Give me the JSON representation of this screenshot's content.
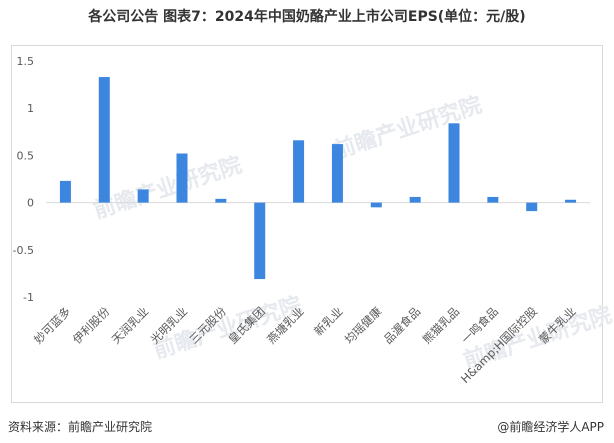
{
  "title": "各公司公告 图表7：2024年中国奶酪产业上市公司EPS(单位：元/股)",
  "footer": {
    "source": "资料来源：前瞻产业研究院",
    "brand": "@前瞻经济学人APP"
  },
  "watermark": "前瞻产业研究院",
  "colors": {
    "bar": "#3C86E0",
    "grid": "#d9d9d9",
    "axis_text": "#595959"
  },
  "chart_data": {
    "type": "bar",
    "title": "各公司公告 图表7：2024年中国奶酪产业上市公司EPS(单位：元/股)",
    "xlabel": "",
    "ylabel": "",
    "ylim": [
      -1,
      1.5
    ],
    "yticks": [
      -1,
      -0.5,
      0,
      0.5,
      1,
      1.5
    ],
    "ytick_labels": [
      "-1",
      "-0.5",
      "0",
      "0.5",
      "1",
      "1.5"
    ],
    "grid": false,
    "legend": "none",
    "categories": [
      "妙可蓝多",
      "伊利股份",
      "天润乳业",
      "光明乳业",
      "三元股份",
      "皇氏集团",
      "燕塘乳业",
      "新乳业",
      "均瑶健康",
      "品渥食品",
      "熊猫乳品",
      "一鸣食品",
      "H&amp;H国际控股",
      "蒙牛乳业"
    ],
    "values": [
      0.23,
      1.33,
      0.14,
      0.52,
      0.04,
      -0.81,
      0.66,
      0.62,
      -0.05,
      0.06,
      0.84,
      0.06,
      -0.09,
      0.03
    ]
  }
}
